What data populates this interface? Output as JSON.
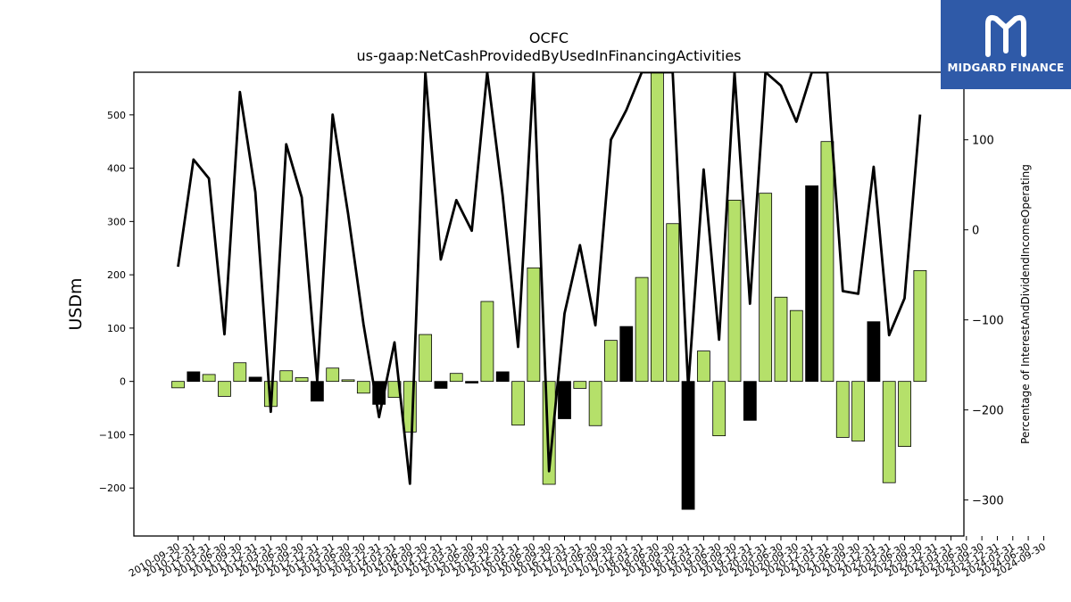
{
  "brand": {
    "name": "MIDGARD FINANCE",
    "bg_color": "#2f5aa8",
    "logo_icon": "midgard-m-icon"
  },
  "chart_data": {
    "type": "bar",
    "title": "OCFC",
    "subtitle": "us-gaap:NetCashProvidedByUsedInFinancingActivities",
    "ylabel": "USDm",
    "y2label": "Percentage of InterestAndDividendIncomeOperating",
    "ylim": [
      -290,
      580
    ],
    "y2lim": [
      -340,
      175
    ],
    "yticks": [
      -200,
      -100,
      0,
      100,
      200,
      300,
      400,
      500
    ],
    "y2ticks": [
      -300,
      -200,
      -100,
      0,
      100
    ],
    "ytick_labels": [
      "−200",
      "−100",
      "0",
      "100",
      "200",
      "300",
      "400",
      "500"
    ],
    "y2tick_labels": [
      "−300",
      "−200",
      "−100",
      "0",
      "100"
    ],
    "colors": {
      "positive_growth": "#b5e06a",
      "negative_growth": "#000000",
      "line": "#000000"
    },
    "categories": [
      "2010-09-30",
      "2010-12-31",
      "2011-03-31",
      "2011-06-30",
      "2011-09-30",
      "2011-12-31",
      "2012-03-31",
      "2012-06-30",
      "2012-09-30",
      "2012-12-31",
      "2013-03-31",
      "2013-06-30",
      "2013-09-30",
      "2013-12-31",
      "2014-03-31",
      "2014-06-30",
      "2014-09-30",
      "2014-12-31",
      "2015-03-31",
      "2015-06-30",
      "2015-09-30",
      "2015-12-31",
      "2016-03-31",
      "2016-06-30",
      "2016-09-30",
      "2016-12-31",
      "2017-03-31",
      "2017-06-30",
      "2017-09-30",
      "2017-12-31",
      "2018-03-31",
      "2018-06-30",
      "2018-09-30",
      "2018-12-31",
      "2019-03-31",
      "2019-06-30",
      "2019-09-30",
      "2019-12-31",
      "2020-03-31",
      "2020-06-30",
      "2020-09-30",
      "2020-12-31",
      "2021-03-31",
      "2021-06-30",
      "2021-09-30",
      "2021-12-31",
      "2022-03-31",
      "2022-06-30",
      "2022-09-30",
      "2022-12-31",
      "2023-03-31",
      "2023-06-30",
      "2023-09-30",
      "2023-12-31",
      "2024-03-31",
      "2024-06-30",
      "2024-09-30"
    ],
    "xtick_labels": [
      "2010-09-30",
      "2010-12-31",
      "2011-03-31",
      "2011-06-30",
      "2011-09-30",
      "2011-12-31",
      "2012-03-31",
      "2012-06-30",
      "2012-09-30",
      "2012-12-31",
      "2013-03-31",
      "2013-06-30",
      "2013-09-30",
      "2013-12-31",
      "2014-03-31",
      "2014-06-30",
      "2014-09-30",
      "2014-12-31",
      "2015-03-31",
      "2015-06-30",
      "2015-09-30",
      "2015-12-31",
      "2016-03-31",
      "2016-06-30",
      "2016-09-30",
      "2016-12-31",
      "2017-03-31",
      "2017-06-30",
      "2017-09-30",
      "2017-12-31",
      "2018-03-31",
      "2018-06-30",
      "2018-09-30",
      "2018-12-31",
      "2019-03-31",
      "2019-06-30",
      "2019-09-30",
      "2019-12-31",
      "2020-03-31",
      "2020-06-30",
      "2020-09-30",
      "2020-12-31",
      "2021-03-31",
      "2021-06-30",
      "2021-09-30",
      "2021-12-31",
      "2022-03-31",
      "2022-06-30",
      "2022-09-30",
      "2022-12-31",
      "2023-03-31",
      "2023-06-30",
      "2023-09-30",
      "2023-12-31",
      "2024-03-31",
      "2024-06-30",
      "2024-09-30"
    ],
    "bars": [
      {
        "x": "2010-09-30",
        "value": -12,
        "color": "green"
      },
      {
        "x": "2010-12-31",
        "value": 18,
        "color": "black"
      },
      {
        "x": "2011-03-31",
        "value": 13,
        "color": "green"
      },
      {
        "x": "2011-06-30",
        "value": -28,
        "color": "green"
      },
      {
        "x": "2011-09-30",
        "value": 35,
        "color": "green"
      },
      {
        "x": "2011-12-31",
        "value": 8,
        "color": "black"
      },
      {
        "x": "2012-03-31",
        "value": -47,
        "color": "green"
      },
      {
        "x": "2012-06-30",
        "value": 20,
        "color": "green"
      },
      {
        "x": "2012-09-30",
        "value": 7,
        "color": "green"
      },
      {
        "x": "2012-12-31",
        "value": -37,
        "color": "black"
      },
      {
        "x": "2013-03-31",
        "value": 25,
        "color": "green"
      },
      {
        "x": "2013-06-30",
        "value": 3,
        "color": "green"
      },
      {
        "x": "2013-09-30",
        "value": -22,
        "color": "green"
      },
      {
        "x": "2013-12-31",
        "value": -43,
        "color": "black"
      },
      {
        "x": "2014-03-31",
        "value": -30,
        "color": "green"
      },
      {
        "x": "2014-06-30",
        "value": -95,
        "color": "green"
      },
      {
        "x": "2014-09-30",
        "value": 88,
        "color": "green"
      },
      {
        "x": "2014-12-31",
        "value": -13,
        "color": "black"
      },
      {
        "x": "2015-03-31",
        "value": 15,
        "color": "green"
      },
      {
        "x": "2015-06-30",
        "value": -3,
        "color": "black"
      },
      {
        "x": "2015-09-30",
        "value": 150,
        "color": "green"
      },
      {
        "x": "2015-12-31",
        "value": 18,
        "color": "black"
      },
      {
        "x": "2016-03-31",
        "value": -82,
        "color": "green"
      },
      {
        "x": "2016-06-30",
        "value": 213,
        "color": "green"
      },
      {
        "x": "2016-09-30",
        "value": -193,
        "color": "green"
      },
      {
        "x": "2016-12-31",
        "value": -70,
        "color": "black"
      },
      {
        "x": "2017-03-31",
        "value": -13,
        "color": "green"
      },
      {
        "x": "2017-06-30",
        "value": -83,
        "color": "green"
      },
      {
        "x": "2017-09-30",
        "value": 77,
        "color": "green"
      },
      {
        "x": "2017-12-31",
        "value": 103,
        "color": "black"
      },
      {
        "x": "2018-03-31",
        "value": 195,
        "color": "green"
      },
      {
        "x": "2018-06-30",
        "value": 590,
        "color": "green"
      },
      {
        "x": "2018-09-30",
        "value": 296,
        "color": "green"
      },
      {
        "x": "2018-12-31",
        "value": -240,
        "color": "black"
      },
      {
        "x": "2019-03-31",
        "value": 57,
        "color": "green"
      },
      {
        "x": "2019-06-30",
        "value": -102,
        "color": "green"
      },
      {
        "x": "2019-09-30",
        "value": 340,
        "color": "green"
      },
      {
        "x": "2019-12-31",
        "value": -73,
        "color": "black"
      },
      {
        "x": "2020-03-31",
        "value": 353,
        "color": "green"
      },
      {
        "x": "2020-06-30",
        "value": 158,
        "color": "green"
      },
      {
        "x": "2020-09-30",
        "value": 133,
        "color": "green"
      },
      {
        "x": "2020-12-31",
        "value": 367,
        "color": "black"
      },
      {
        "x": "2021-03-31",
        "value": 450,
        "color": "green"
      },
      {
        "x": "2021-06-30",
        "value": -105,
        "color": "green"
      },
      {
        "x": "2021-09-30",
        "value": -112,
        "color": "green"
      },
      {
        "x": "2021-12-31",
        "value": 112,
        "color": "black"
      },
      {
        "x": "2022-03-31",
        "value": -190,
        "color": "green"
      },
      {
        "x": "2022-06-30",
        "value": -122,
        "color": "green"
      },
      {
        "x": "2022-09-30",
        "value": 208,
        "color": "green"
      }
    ],
    "line": {
      "axis": "right",
      "values": [
        -41,
        78,
        57,
        -116,
        153,
        42,
        -202,
        95,
        36,
        -168,
        128,
        18,
        -105,
        -208,
        -125,
        -282,
        175,
        -33,
        33,
        -1,
        175,
        38,
        -130,
        175,
        -268,
        -93,
        -17,
        -106,
        100,
        133,
        175,
        175,
        175,
        -175,
        67,
        -122,
        175,
        -82,
        175,
        160,
        120,
        175,
        175,
        -68,
        -71,
        70,
        -117,
        -76,
        128
      ]
    }
  }
}
